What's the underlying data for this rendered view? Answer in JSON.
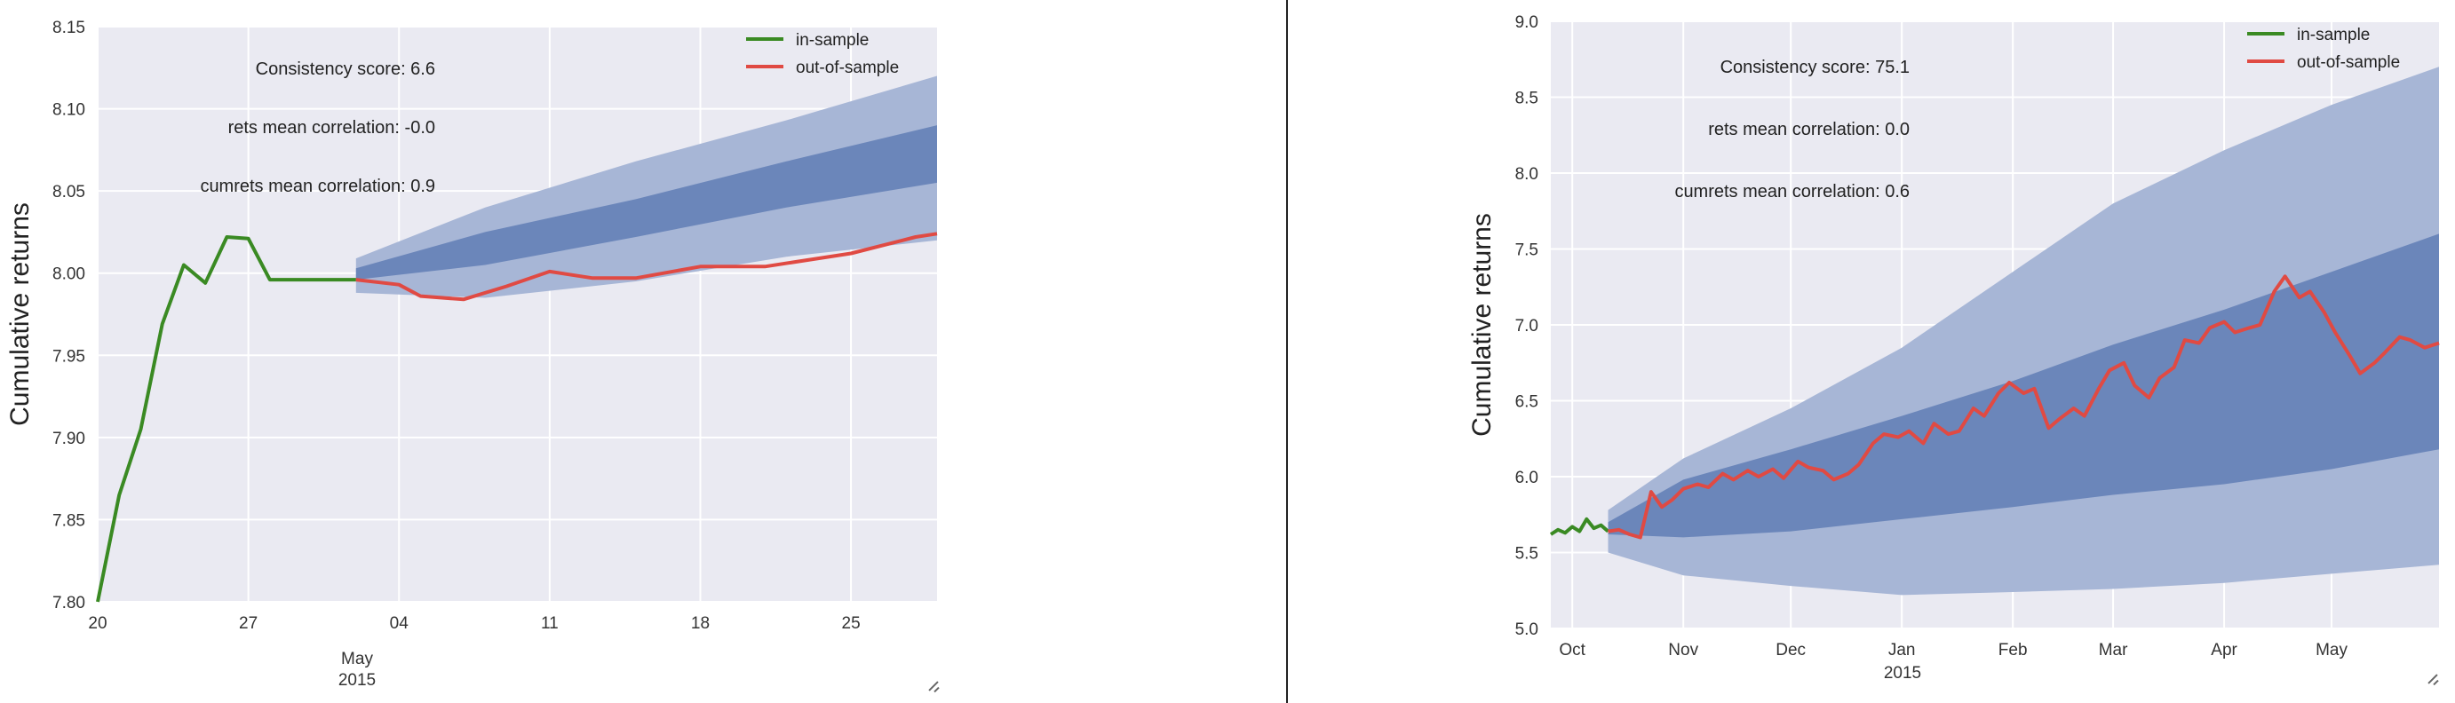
{
  "chart_data": [
    {
      "type": "line",
      "ylabel": "Cumulative returns",
      "ylim": [
        7.8,
        8.15
      ],
      "yticks": [
        "7.80",
        "7.85",
        "7.90",
        "7.95",
        "8.00",
        "8.05",
        "8.10",
        "8.15"
      ],
      "xlim": [
        "2015-04-20",
        "2015-05-29"
      ],
      "xticks": [
        {
          "date": "2015-04-20",
          "label": "20"
        },
        {
          "date": "2015-04-27",
          "label": "27"
        },
        {
          "date": "2015-05-04",
          "label": "04"
        },
        {
          "date": "2015-05-11",
          "label": "11"
        },
        {
          "date": "2015-05-18",
          "label": "18"
        },
        {
          "date": "2015-05-25",
          "label": "25"
        }
      ],
      "xlabel_month": "May",
      "xlabel_year": "2015",
      "grid": true,
      "legend_position": "top-right",
      "annotations": [
        "Consistency score: 6.6",
        "rets mean correlation: -0.0",
        "cumrets mean correlation: 0.9"
      ],
      "series": [
        {
          "name": "in-sample",
          "color": "#3a8a23",
          "x": [
            "2015-04-20",
            "2015-04-21",
            "2015-04-22",
            "2015-04-23",
            "2015-04-24",
            "2015-04-25",
            "2015-04-26",
            "2015-04-27",
            "2015-04-28",
            "2015-04-29",
            "2015-04-30",
            "2015-05-01",
            "2015-05-02"
          ],
          "y": [
            7.8,
            7.865,
            7.905,
            7.969,
            8.005,
            7.994,
            8.022,
            8.021,
            7.996,
            7.996,
            7.996,
            7.996,
            7.996
          ]
        },
        {
          "name": "out-of-sample",
          "color": "#e04a43",
          "x": [
            "2015-05-02",
            "2015-05-04",
            "2015-05-05",
            "2015-05-07",
            "2015-05-09",
            "2015-05-11",
            "2015-05-13",
            "2015-05-15",
            "2015-05-18",
            "2015-05-21",
            "2015-05-25",
            "2015-05-28",
            "2015-05-29"
          ],
          "y": [
            7.996,
            7.993,
            7.986,
            7.984,
            7.992,
            8.001,
            7.997,
            7.997,
            8.004,
            8.004,
            8.012,
            8.022,
            8.024
          ]
        }
      ],
      "bands": [
        {
          "name": "outer",
          "color": "#a7b6d6",
          "x": [
            "2015-05-02",
            "2015-05-08",
            "2015-05-15",
            "2015-05-22",
            "2015-05-29"
          ],
          "upper": [
            8.009,
            8.04,
            8.068,
            8.093,
            8.12
          ],
          "lower": [
            7.988,
            7.985,
            7.995,
            8.01,
            8.02
          ]
        },
        {
          "name": "inner",
          "color": "#6b86ba",
          "x": [
            "2015-05-02",
            "2015-05-08",
            "2015-05-15",
            "2015-05-22",
            "2015-05-29"
          ],
          "upper": [
            8.003,
            8.025,
            8.045,
            8.068,
            8.09
          ],
          "lower": [
            7.996,
            8.005,
            8.022,
            8.04,
            8.055
          ]
        }
      ]
    },
    {
      "type": "line",
      "ylabel": "Cumulative returns",
      "ylim": [
        5.0,
        9.0
      ],
      "yticks": [
        "5.0",
        "5.5",
        "6.0",
        "6.5",
        "7.0",
        "7.5",
        "8.0",
        "8.5",
        "9.0"
      ],
      "xlim": [
        "2014-09-25",
        "2015-05-31"
      ],
      "xticks": [
        {
          "date": "2014-10-01",
          "label": "Oct"
        },
        {
          "date": "2014-11-01",
          "label": "Nov"
        },
        {
          "date": "2014-12-01",
          "label": "Dec"
        },
        {
          "date": "2015-01-01",
          "label": "Jan"
        },
        {
          "date": "2015-02-01",
          "label": "Feb"
        },
        {
          "date": "2015-03-01",
          "label": "Mar"
        },
        {
          "date": "2015-04-01",
          "label": "Apr"
        },
        {
          "date": "2015-05-01",
          "label": "May"
        }
      ],
      "xlabel_year": "2015",
      "grid": true,
      "legend_position": "top-right",
      "annotations": [
        "Consistency score: 75.1",
        "rets mean correlation: 0.0",
        "cumrets mean correlation: 0.6"
      ],
      "series": [
        {
          "name": "in-sample",
          "color": "#3a8a23",
          "x": [
            "2014-09-25",
            "2014-09-27",
            "2014-09-29",
            "2014-10-01",
            "2014-10-03",
            "2014-10-05",
            "2014-10-07",
            "2014-10-09",
            "2014-10-11"
          ],
          "y": [
            5.62,
            5.65,
            5.63,
            5.67,
            5.64,
            5.72,
            5.66,
            5.68,
            5.64
          ]
        },
        {
          "name": "out-of-sample",
          "color": "#e04a43",
          "x": [
            "2014-10-11",
            "2014-10-14",
            "2014-10-17",
            "2014-10-20",
            "2014-10-23",
            "2014-10-26",
            "2014-10-29",
            "2014-11-01",
            "2014-11-05",
            "2014-11-08",
            "2014-11-12",
            "2014-11-15",
            "2014-11-19",
            "2014-11-22",
            "2014-11-26",
            "2014-11-29",
            "2014-12-03",
            "2014-12-06",
            "2014-12-10",
            "2014-12-13",
            "2014-12-17",
            "2014-12-20",
            "2014-12-24",
            "2014-12-27",
            "2014-12-31",
            "2015-01-03",
            "2015-01-07",
            "2015-01-10",
            "2015-01-14",
            "2015-01-17",
            "2015-01-21",
            "2015-01-24",
            "2015-01-28",
            "2015-01-31",
            "2015-02-04",
            "2015-02-07",
            "2015-02-11",
            "2015-02-14",
            "2015-02-18",
            "2015-02-21",
            "2015-02-25",
            "2015-02-28",
            "2015-03-04",
            "2015-03-07",
            "2015-03-11",
            "2015-03-14",
            "2015-03-18",
            "2015-03-21",
            "2015-03-25",
            "2015-03-28",
            "2015-04-01",
            "2015-04-04",
            "2015-04-08",
            "2015-04-11",
            "2015-04-15",
            "2015-04-18",
            "2015-04-22",
            "2015-04-25",
            "2015-04-29",
            "2015-05-02",
            "2015-05-06",
            "2015-05-09",
            "2015-05-13",
            "2015-05-16",
            "2015-05-20",
            "2015-05-23",
            "2015-05-27",
            "2015-05-31"
          ],
          "y": [
            5.64,
            5.65,
            5.62,
            5.6,
            5.9,
            5.8,
            5.85,
            5.92,
            5.95,
            5.93,
            6.02,
            5.98,
            6.04,
            6.0,
            6.05,
            5.99,
            6.1,
            6.06,
            6.04,
            5.98,
            6.02,
            6.08,
            6.22,
            6.28,
            6.26,
            6.3,
            6.22,
            6.35,
            6.28,
            6.3,
            6.45,
            6.4,
            6.55,
            6.62,
            6.55,
            6.58,
            6.32,
            6.38,
            6.45,
            6.4,
            6.58,
            6.7,
            6.75,
            6.6,
            6.52,
            6.65,
            6.72,
            6.9,
            6.88,
            6.98,
            7.02,
            6.95,
            6.98,
            7.0,
            7.22,
            7.32,
            7.18,
            7.22,
            7.08,
            6.95,
            6.8,
            6.68,
            6.75,
            6.82,
            6.92,
            6.9,
            6.85,
            6.88
          ]
        }
      ],
      "bands": [
        {
          "name": "outer",
          "color": "#a7b6d6",
          "x": [
            "2014-10-11",
            "2014-11-01",
            "2014-12-01",
            "2015-01-01",
            "2015-02-01",
            "2015-03-01",
            "2015-04-01",
            "2015-05-01",
            "2015-05-31"
          ],
          "upper": [
            5.78,
            6.12,
            6.45,
            6.85,
            7.35,
            7.8,
            8.15,
            8.45,
            8.7
          ],
          "lower": [
            5.5,
            5.35,
            5.28,
            5.22,
            5.24,
            5.26,
            5.3,
            5.36,
            5.42
          ]
        },
        {
          "name": "inner",
          "color": "#6b86ba",
          "x": [
            "2014-10-11",
            "2014-11-01",
            "2014-12-01",
            "2015-01-01",
            "2015-02-01",
            "2015-03-01",
            "2015-04-01",
            "2015-05-01",
            "2015-05-31"
          ],
          "upper": [
            5.7,
            5.98,
            6.18,
            6.4,
            6.63,
            6.87,
            7.1,
            7.35,
            7.6
          ],
          "lower": [
            5.62,
            5.6,
            5.64,
            5.72,
            5.8,
            5.88,
            5.95,
            6.05,
            6.18
          ]
        }
      ]
    }
  ]
}
